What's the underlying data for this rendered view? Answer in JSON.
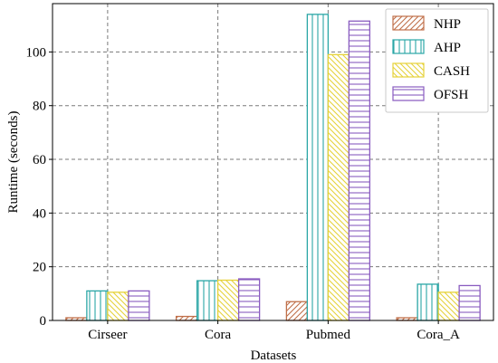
{
  "chart_data": {
    "type": "bar",
    "title": "",
    "xlabel": "Datasets",
    "ylabel": "Runtime (seconds)",
    "categories": [
      "Cirseer",
      "Cora",
      "Pubmed",
      "Cora_A"
    ],
    "ylim": [
      0,
      118
    ],
    "yticks": [
      0,
      20,
      40,
      60,
      80,
      100
    ],
    "grid": true,
    "legend_position": "top-right",
    "series": [
      {
        "name": "NHP",
        "values": [
          1.0,
          1.5,
          7.0,
          1.0
        ],
        "color": "#c0704a",
        "hatch": "diagonal-forward"
      },
      {
        "name": "AHP",
        "values": [
          11.0,
          14.8,
          114.0,
          13.5
        ],
        "color": "#2aa6a6",
        "hatch": "vertical"
      },
      {
        "name": "CASH",
        "values": [
          10.5,
          15.0,
          99.0,
          10.5
        ],
        "color": "#e6d23a",
        "hatch": "diagonal-back"
      },
      {
        "name": "OFSH",
        "values": [
          11.0,
          15.5,
          111.5,
          13.0
        ],
        "color": "#8a5cc0",
        "hatch": "horizontal"
      }
    ]
  }
}
